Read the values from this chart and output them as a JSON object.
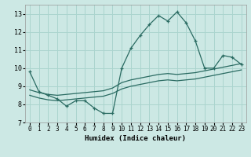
{
  "xlabel": "Humidex (Indice chaleur)",
  "xlim": [
    -0.5,
    23.5
  ],
  "ylim": [
    7,
    13.5
  ],
  "yticks": [
    7,
    8,
    9,
    10,
    11,
    12,
    13
  ],
  "xticks": [
    0,
    1,
    2,
    3,
    4,
    5,
    6,
    7,
    8,
    9,
    10,
    11,
    12,
    13,
    14,
    15,
    16,
    17,
    18,
    19,
    20,
    21,
    22,
    23
  ],
  "bg_color": "#cce8e4",
  "grid_color": "#aad4ce",
  "line_color": "#2a6b62",
  "series1_x": [
    0,
    1,
    2,
    3,
    4,
    5,
    6,
    7,
    8,
    9,
    10,
    11,
    12,
    13,
    14,
    15,
    16,
    17,
    18,
    19,
    20,
    21,
    22,
    23
  ],
  "series1_y": [
    9.8,
    8.7,
    8.5,
    8.3,
    7.9,
    8.2,
    8.2,
    7.8,
    7.5,
    7.5,
    10.0,
    11.1,
    11.8,
    12.4,
    12.9,
    12.6,
    13.1,
    12.5,
    11.5,
    10.0,
    10.0,
    10.7,
    10.6,
    10.2
  ],
  "series2_x": [
    0,
    1,
    2,
    3,
    4,
    5,
    6,
    7,
    8,
    9,
    10,
    11,
    12,
    13,
    14,
    15,
    16,
    17,
    18,
    19,
    20,
    21,
    22,
    23
  ],
  "series2_y": [
    8.8,
    8.65,
    8.55,
    8.5,
    8.55,
    8.6,
    8.65,
    8.7,
    8.75,
    8.9,
    9.2,
    9.35,
    9.45,
    9.55,
    9.65,
    9.7,
    9.65,
    9.7,
    9.75,
    9.85,
    9.95,
    10.05,
    10.15,
    10.25
  ],
  "series3_x": [
    0,
    1,
    2,
    3,
    4,
    5,
    6,
    7,
    8,
    9,
    10,
    11,
    12,
    13,
    14,
    15,
    16,
    17,
    18,
    19,
    20,
    21,
    22,
    23
  ],
  "series3_y": [
    8.5,
    8.35,
    8.25,
    8.2,
    8.25,
    8.3,
    8.35,
    8.4,
    8.45,
    8.6,
    8.85,
    9.0,
    9.1,
    9.2,
    9.3,
    9.35,
    9.3,
    9.35,
    9.4,
    9.5,
    9.6,
    9.7,
    9.8,
    9.9
  ]
}
